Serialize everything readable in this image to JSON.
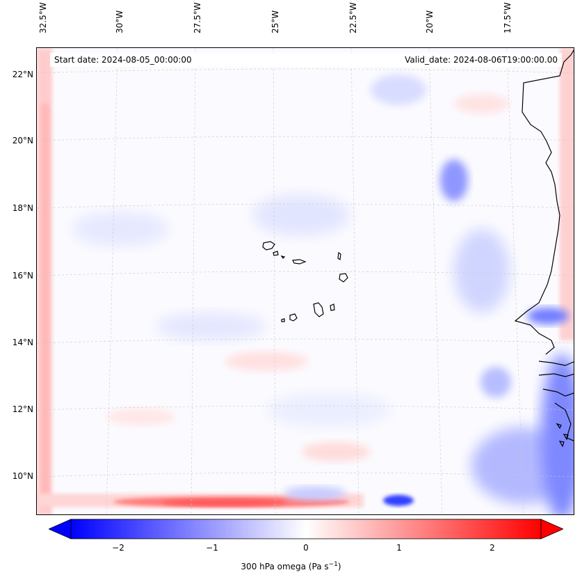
{
  "map": {
    "start_date": "Start date: 2024-08-05_00:00:00",
    "valid_date": "Valid_date: 2024-08-06T19:00:00.00",
    "longitude_labels": [
      "32.5°W",
      "30°W",
      "27.5°W",
      "25°W",
      "22.5°W",
      "20°W",
      "17.5°W"
    ],
    "latitude_labels": [
      "22°N",
      "20°N",
      "18°N",
      "16°N",
      "14°N",
      "12°N",
      "10°N"
    ],
    "extent": {
      "lon_min": -32.7,
      "lon_max": -15.6,
      "lat_min": 8.9,
      "lat_max": 22.8
    }
  },
  "colorbar": {
    "label_prefix": "300 hPa omega (Pa s",
    "label_exponent": "−1",
    "label_suffix": ")",
    "ticks": [
      "−2",
      "−1",
      "0",
      "1",
      "2"
    ],
    "tick_values": [
      -2,
      -1,
      0,
      1,
      2
    ],
    "vmin": -2.6,
    "vmax": 2.6,
    "colors": {
      "negative": "#0000ff",
      "zero": "#ffffff",
      "positive": "#ff0000"
    }
  }
}
